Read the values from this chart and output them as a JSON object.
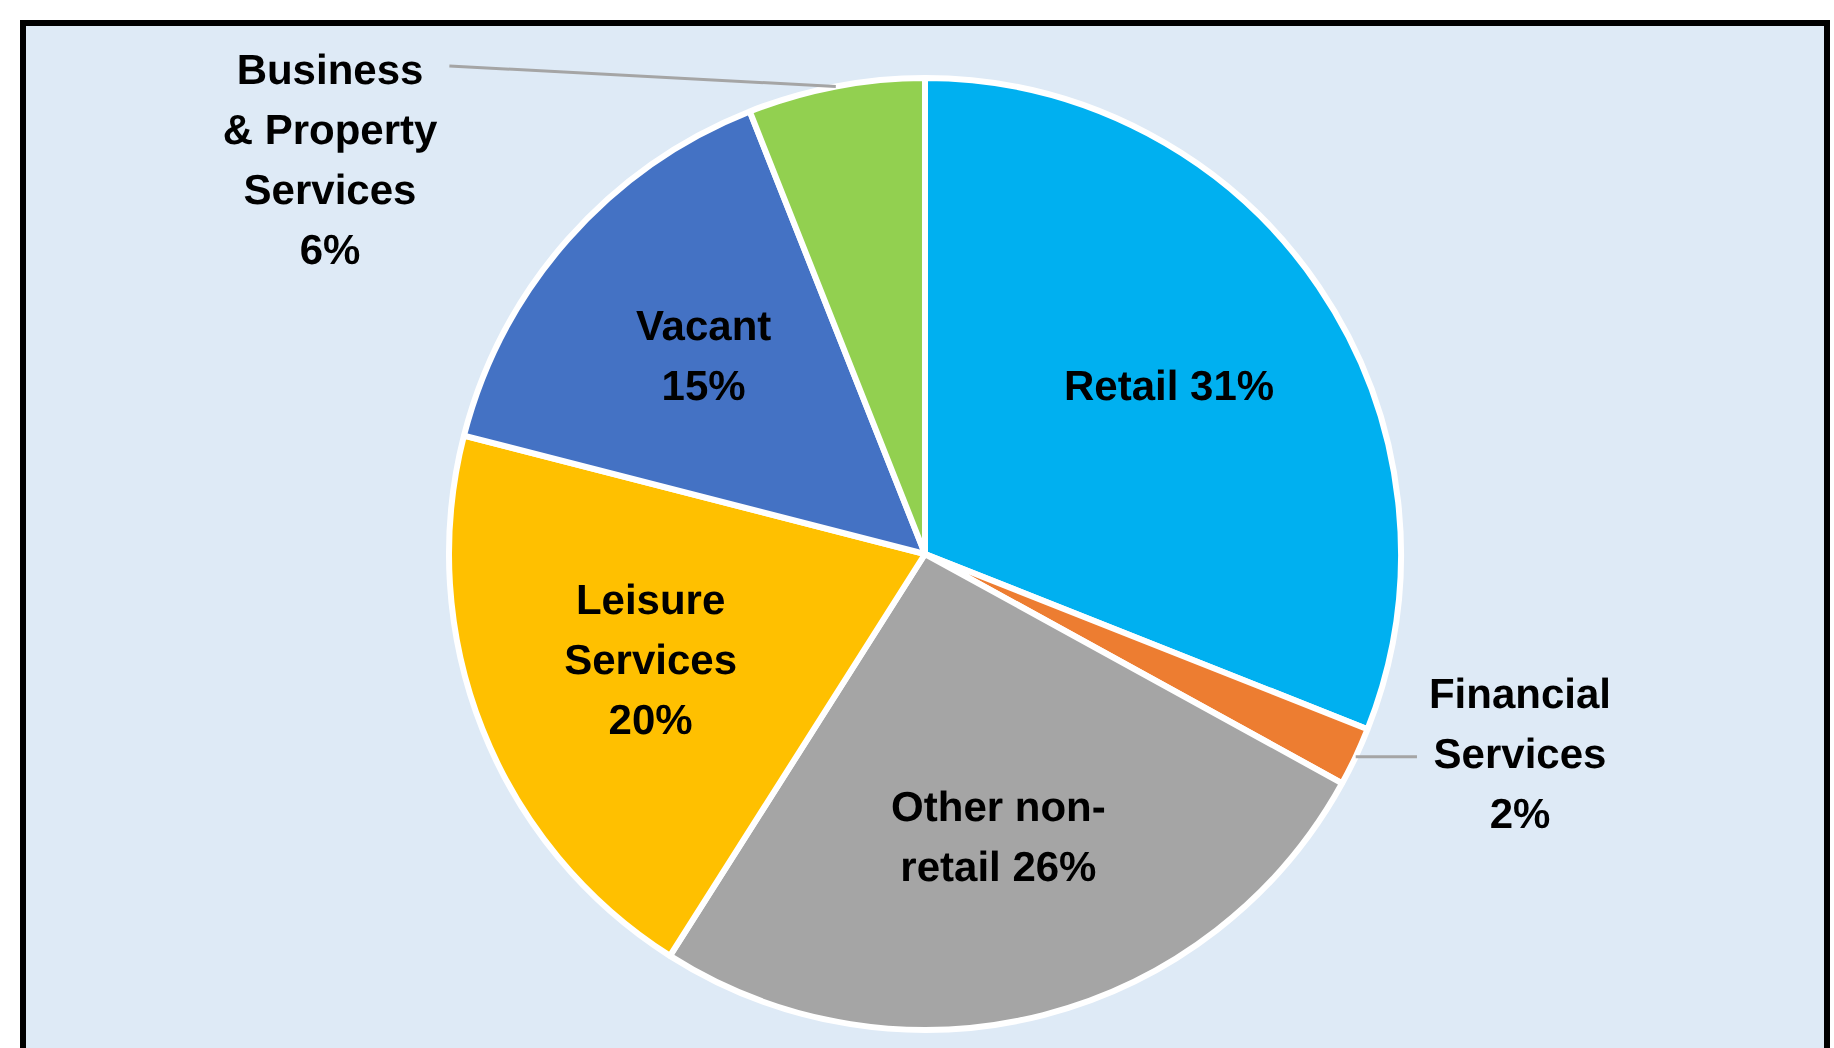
{
  "chart_data": {
    "type": "pie",
    "categories": [
      "Retail",
      "Financial Services",
      "Other non-retail",
      "Leisure Services",
      "Vacant",
      "Business & Property Services"
    ],
    "values": [
      31,
      2,
      26,
      20,
      15,
      6
    ],
    "value_labels": [
      "31%",
      "2%",
      "26%",
      "20%",
      "15%",
      "6%"
    ],
    "colors": [
      "#00b0f0",
      "#ed7d31",
      "#a5a5a5",
      "#ffc000",
      "#4472c4",
      "#92d050"
    ],
    "legend": false
  }
}
